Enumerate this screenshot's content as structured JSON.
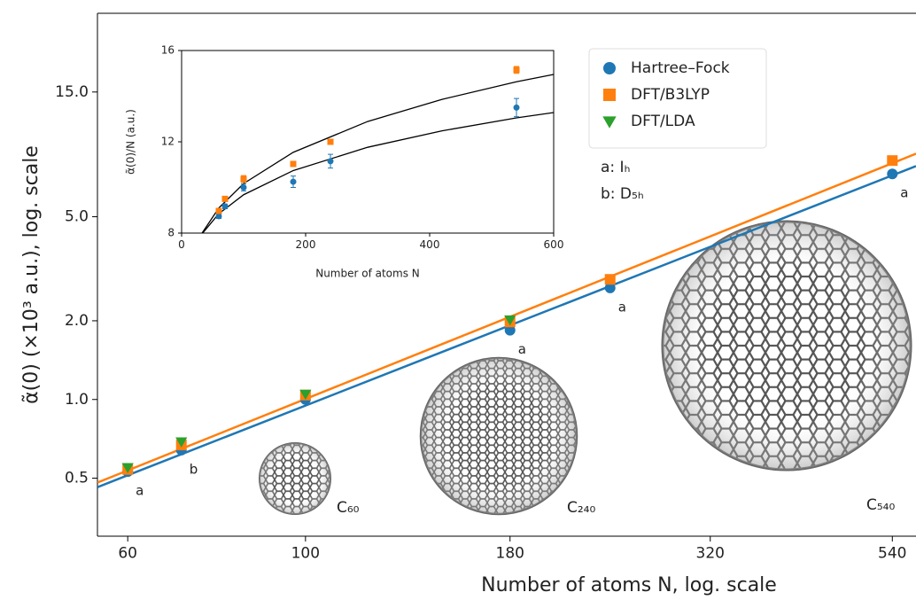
{
  "chart_data": [
    {
      "type": "scatter",
      "x_log": true,
      "y_log": true,
      "xlabel": "Number of atoms N, log. scale",
      "ylabel": "α̃(0) (×10³ a.u.), log. scale",
      "xlim": [
        55,
        578
      ],
      "ylim": [
        0.3,
        30
      ],
      "xticks": [
        60,
        100,
        180,
        320,
        540
      ],
      "yticks": [
        0.5,
        {
          "value": 1,
          "label": "1.0"
        },
        {
          "value": 2,
          "label": "2.0"
        },
        {
          "value": 5,
          "label": "5.0"
        },
        {
          "value": 15,
          "label": "15.0"
        }
      ],
      "legend": "upper right",
      "series": [
        {
          "name": "Hartree–Fock",
          "color": "#1f77b4",
          "marker": "circle",
          "x": [
            60,
            70,
            100,
            180,
            240,
            540
          ],
          "values": [
            0.53,
            0.64,
            1.0,
            1.84,
            2.67,
            7.29
          ],
          "labels": [
            "a",
            "b",
            null,
            "a",
            "a",
            "a"
          ]
        },
        {
          "name": "DFT/B3LYP",
          "color": "#ff7f0e",
          "marker": "square",
          "x": [
            60,
            70,
            100,
            180,
            240,
            540
          ],
          "values": [
            0.54,
            0.67,
            1.04,
            1.98,
            2.88,
            8.2
          ]
        },
        {
          "name": "DFT/LDA",
          "color": "#2ca02c",
          "marker": "triangle",
          "x": [
            60,
            70,
            100,
            180
          ],
          "values": [
            0.55,
            0.69,
            1.05,
            2.02
          ]
        }
      ],
      "fits": [
        {
          "color": "#1f77b4",
          "x": [
            55,
            578
          ],
          "values": [
            0.462,
            7.81
          ]
        },
        {
          "color": "#ff7f0e",
          "x": [
            55,
            578
          ],
          "values": [
            0.481,
            8.71
          ]
        }
      ],
      "annotations": [
        "a: Iₕ",
        "b: D₅ₕ"
      ],
      "structures": [
        "C₆₀",
        "C₂₄₀",
        "C₅₄₀"
      ]
    },
    {
      "type": "scatter",
      "xlabel": "Number of atoms N",
      "ylabel": "α̃(0)/N (a.u.)",
      "xlim": [
        0,
        600
      ],
      "ylim": [
        8,
        16
      ],
      "xticks": [
        0,
        200,
        400,
        600
      ],
      "yticks": [
        8,
        12,
        16
      ],
      "series": [
        {
          "color": "#1f77b4",
          "marker": "circle",
          "x": [
            60,
            70,
            100,
            180,
            240,
            540
          ],
          "values": [
            8.74,
            9.17,
            10.0,
            10.25,
            11.15,
            13.5
          ],
          "errors": [
            0.1,
            0.1,
            0.15,
            0.25,
            0.3,
            0.4
          ]
        },
        {
          "color": "#ff7f0e",
          "marker": "square",
          "x": [
            60,
            70,
            100,
            180,
            240,
            540
          ],
          "values": [
            8.97,
            9.5,
            10.37,
            11.03,
            12.0,
            15.15
          ],
          "errors": [
            0.1,
            0.1,
            0.15,
            0.1,
            0.1,
            0.15
          ]
        }
      ],
      "fits": [
        {
          "color": "#000000",
          "x": [
            33,
            60,
            100,
            180,
            300,
            420,
            540,
            600
          ],
          "values": [
            8,
            9.1,
            10.17,
            11.54,
            12.89,
            13.86,
            14.63,
            14.95
          ]
        },
        {
          "color": "#000000",
          "x": [
            34,
            60,
            100,
            180,
            300,
            420,
            540,
            600
          ],
          "values": [
            8,
            8.85,
            9.68,
            10.74,
            11.76,
            12.48,
            13.05,
            13.28
          ]
        }
      ]
    }
  ]
}
